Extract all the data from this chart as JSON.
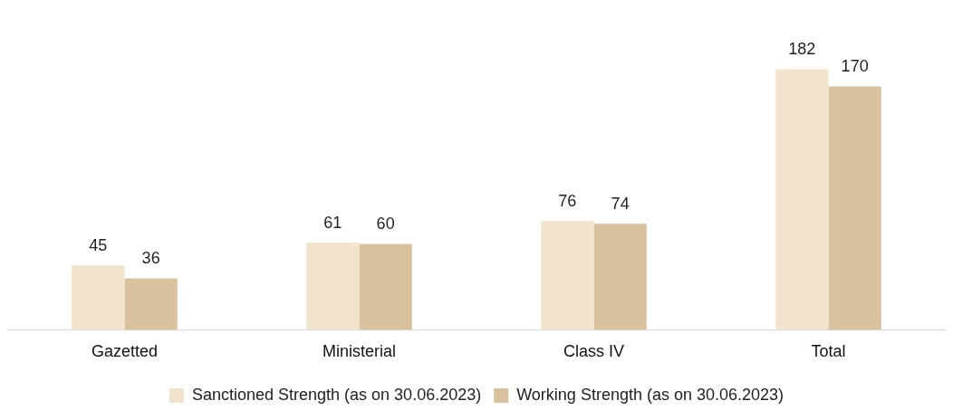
{
  "chart_data": {
    "type": "bar",
    "categories": [
      "Gazetted",
      "Ministerial",
      "Class IV",
      "Total"
    ],
    "series": [
      {
        "name": "Sanctioned Strength (as on 30.06.2023)",
        "color": "#f2e3cd",
        "values": [
          45,
          61,
          76,
          182
        ]
      },
      {
        "name": "Working Strength (as on 30.06.2023)",
        "color": "#d8c19c",
        "values": [
          36,
          60,
          74,
          170
        ]
      }
    ],
    "data_labels": true,
    "grid": false,
    "legend": "bottom"
  }
}
